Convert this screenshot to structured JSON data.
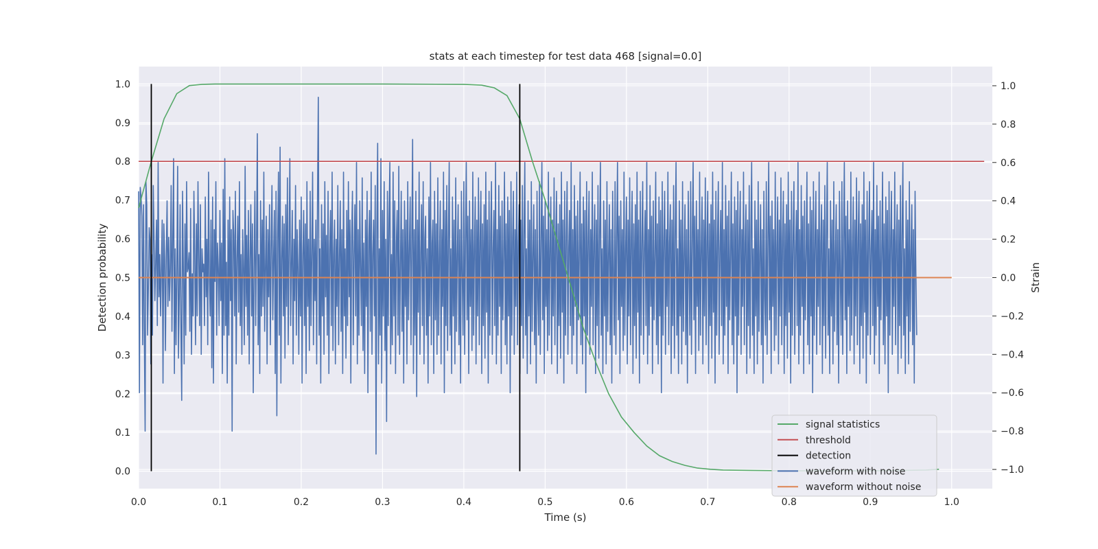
{
  "chart_data": {
    "type": "line",
    "title": "stats at each timestep for test data 468 [signal=0.0]",
    "xlabel": "Time (s)",
    "ylabel": "Detection probability",
    "y2label": "Strain",
    "xlim": [
      0.0,
      1.05
    ],
    "ylim": [
      -0.045,
      1.045
    ],
    "y2lim": [
      -1.1,
      1.1
    ],
    "x_ticks": [
      "0.0",
      "0.1",
      "0.2",
      "0.3",
      "0.4",
      "0.5",
      "0.6",
      "0.7",
      "0.8",
      "0.9",
      "1.0"
    ],
    "y_ticks": [
      "0.0",
      "0.1",
      "0.2",
      "0.3",
      "0.4",
      "0.5",
      "0.6",
      "0.7",
      "0.8",
      "0.9",
      "1.0"
    ],
    "y2_ticks": [
      "−1.0",
      "−0.8",
      "−0.6",
      "−0.4",
      "−0.2",
      "0.0",
      "0.2",
      "0.4",
      "0.6",
      "0.8",
      "1.0"
    ],
    "grid": true,
    "legend_position": "lower right",
    "background": "#eaeaf2",
    "series": [
      {
        "name": "signal statistics",
        "axis": "left",
        "color": "#55a868",
        "x": [
          0.0,
          0.0156,
          0.0313,
          0.0469,
          0.0625,
          0.0781,
          0.0938,
          0.125,
          0.2,
          0.3,
          0.4,
          0.4219,
          0.4375,
          0.4531,
          0.4688,
          0.4844,
          0.5,
          0.5156,
          0.5313,
          0.5469,
          0.5625,
          0.5781,
          0.5938,
          0.6094,
          0.625,
          0.6406,
          0.6563,
          0.6719,
          0.6875,
          0.7031,
          0.7188,
          0.75,
          0.8,
          0.9,
          0.9688,
          0.9844
        ],
        "y": [
          0.68,
          0.8,
          0.91,
          0.975,
          0.996,
          0.999,
          1.0,
          1.0,
          1.0,
          1.0,
          0.999,
          0.997,
          0.99,
          0.97,
          0.91,
          0.8,
          0.7,
          0.59,
          0.48,
          0.37,
          0.28,
          0.2,
          0.14,
          0.1,
          0.065,
          0.04,
          0.025,
          0.015,
          0.008,
          0.005,
          0.003,
          0.002,
          0.001,
          0.001,
          0.003,
          0.005
        ]
      },
      {
        "name": "threshold",
        "axis": "left",
        "color": "#c44e52",
        "x": [
          0.0,
          1.04
        ],
        "y": [
          0.8,
          0.8
        ]
      },
      {
        "name": "detection",
        "axis": "left",
        "color": "#000000",
        "segments": [
          {
            "x": 0.0156,
            "y0": 0.0,
            "y1": 1.0
          },
          {
            "x": 0.4688,
            "y0": 0.0,
            "y1": 1.0
          }
        ]
      },
      {
        "name": "waveform with noise",
        "axis": "right",
        "color": "#4c72b0",
        "x_start": 0.0,
        "x_step": 0.001,
        "y": [
          0.45,
          -0.6,
          0.47,
          0.42,
          0.32,
          -0.35,
          0.38,
          -0.28,
          -0.8,
          0.5,
          0.38,
          -0.3,
          -0.05,
          0.26,
          0.2,
          -0.45,
          0.12,
          -0.3,
          0.48,
          0.2,
          -0.12,
          0.08,
          0.3,
          -0.25,
          0.6,
          -0.1,
          0.12,
          -0.2,
          0.05,
          0.3,
          -0.55,
          0.28,
          0.1,
          -0.38,
          0.12,
          0.4,
          -0.15,
          0.21,
          -0.12,
          0.05,
          0.48,
          -0.28,
          0.2,
          0.62,
          -0.5,
          0.15,
          -0.35,
          0.02,
          0.58,
          -0.42,
          -0.1,
          0.38,
          -0.25,
          -0.64,
          0.45,
          0.05,
          -0.45,
          0.28,
          -0.3,
          0.5,
          0.03,
          0.05,
          0.13,
          -0.28,
          0.36,
          -0.4,
          0.02,
          -0.2,
          0.45,
          0.12,
          -0.35,
          0.28,
          -0.2,
          0.5,
          0.1,
          -0.25,
          0.38,
          -0.4,
          0.15,
          0.03,
          0.07,
          -0.25,
          0.42,
          -0.1,
          0.2,
          -0.35,
          0.55,
          0.0,
          -0.2,
          0.3,
          -0.47,
          0.42,
          -0.55,
          0.25,
          -0.02,
          0.5,
          -0.3,
          0.18,
          0.05,
          -0.25,
          0.35,
          -0.12,
          0.18,
          -0.5,
          0.46,
          -0.3,
          0.62,
          -0.25,
          0.08,
          -0.55,
          0.3,
          -0.3,
          0.42,
          -0.12,
          0.25,
          -0.8,
          0.35,
          0.22,
          -0.2,
          0.45,
          -0.45,
          0.1,
          0.32,
          -0.18,
          0.5,
          -0.25,
          0.12,
          -0.4,
          0.25,
          0.05,
          -0.35,
          0.58,
          -0.15,
          0.22,
          -0.3,
          0.35,
          -0.45,
          0.1,
          0.38,
          -0.2,
          0.28,
          -0.6,
          0.05,
          0.45,
          -0.25,
          0.15,
          0.75,
          -0.35,
          0.12,
          -0.5,
          0.4,
          -0.2,
          0.3,
          -0.15,
          0.55,
          -0.28,
          0.05,
          0.32,
          -0.45,
          0.25,
          -0.1,
          0.38,
          -0.35,
          0.15,
          0.48,
          -0.22,
          0.1,
          0.35,
          -0.5,
          0.45,
          -0.72,
          0.2,
          0.55,
          -0.3,
          0.68,
          -0.55,
          0.1,
          0.32,
          -0.2,
          0.28,
          -0.42,
          0.38,
          -0.15,
          0.52,
          -0.35,
          0.15,
          0.62,
          -0.25,
          0.08,
          0.35,
          -0.45,
          0.2,
          -0.12,
          0.48,
          -0.3,
          0.25,
          0.05,
          -0.4,
          0.3,
          -0.2,
          0.42,
          -0.55,
          0.12,
          0.35,
          -0.25,
          0.28,
          -0.5,
          0.5,
          -0.15,
          0.2,
          -0.38,
          0.45,
          -0.25,
          0.12,
          0.55,
          -0.35,
          0.2,
          -0.12,
          0.3,
          -0.45,
          0.4,
          0.94,
          -0.3,
          0.15,
          -0.55,
          0.38,
          -0.2,
          0.28,
          -0.4,
          0.5,
          -0.1,
          0.22,
          -0.3,
          0.45,
          -0.5,
          0.15,
          0.35,
          -0.25,
          0.55,
          -0.38,
          0.12,
          0.3,
          -0.45,
          0.2,
          -0.15,
          0.48,
          -0.35,
          0.1,
          0.4,
          -0.28,
          0.25,
          -0.5,
          0.55,
          -0.2,
          0.15,
          -0.42,
          0.35,
          -0.25,
          0.5,
          -0.1,
          0.3,
          -0.55,
          0.2,
          0.45,
          -0.35,
          0.12,
          0.38,
          -0.2,
          0.6,
          -0.45,
          0.25,
          -0.3,
          0.4,
          0.05,
          -0.25,
          0.52,
          -0.38,
          0.18,
          -0.5,
          0.3,
          -0.15,
          0.45,
          -0.6,
          0.2,
          0.35,
          -0.28,
          0.55,
          -0.4,
          0.12,
          0.3,
          -0.2,
          0.48,
          -0.92,
          0.25,
          0.7,
          -0.45,
          0.15,
          -0.3,
          0.62,
          -0.55,
          0.35,
          -0.2,
          0.5,
          -0.38,
          0.2,
          -0.75,
          0.45,
          -0.25,
          0.3,
          0.6,
          -0.45,
          0.12,
          -0.35,
          0.55,
          -0.2,
          0.4,
          -0.5,
          0.18,
          0.35,
          -0.3,
          0.58,
          -0.4,
          0.05,
          0.45,
          -0.28,
          0.25,
          -0.55,
          0.4,
          -0.15,
          0.3,
          -0.45,
          0.5,
          -0.22,
          0.15,
          0.42,
          -0.35,
          0.2,
          0.72,
          -0.5,
          0.25,
          -0.3,
          0.45,
          -0.62,
          0.3,
          -0.18,
          0.55,
          -0.4,
          0.12,
          0.38,
          -0.25,
          0.5,
          -0.45,
          0.2,
          0.32,
          -0.3,
          0.15,
          -0.55,
          0.42,
          -0.2,
          0.6,
          -0.35,
          0.18,
          0.3,
          -0.5,
          0.45,
          -0.22,
          0.28,
          -0.4,
          0.52,
          -0.3,
          0.1,
          0.4,
          -0.45,
          0.25,
          -0.15,
          0.55,
          -0.6,
          0.35,
          -0.25,
          0.48,
          -0.38,
          0.2,
          0.6,
          -0.3,
          0.15,
          -0.5,
          0.42,
          -0.2,
          0.3,
          -0.45,
          0.52,
          -0.28,
          0.12,
          0.38,
          -0.35,
          0.25,
          -0.55,
          0.45,
          0.02,
          -0.3,
          0.5,
          -0.4,
          0.2,
          0.6,
          -0.22,
          0.32,
          -0.5,
          0.4,
          -0.15,
          0.25,
          -0.38,
          0.55,
          -0.3,
          0.15,
          0.42,
          -0.45,
          0.3,
          -0.2,
          0.52,
          -0.35,
          0.2,
          0.45,
          -0.5,
          0.28,
          -0.25,
          0.38,
          -0.42,
          0.55,
          -0.18,
          0.3,
          -0.55,
          0.45,
          -0.3,
          0.2,
          0.5,
          -0.4,
          0.15,
          0.35,
          -0.25,
          0.6,
          -0.45,
          0.25,
          -0.3,
          0.48,
          -0.15,
          0.32,
          -0.5,
          0.4,
          -0.22,
          0.12,
          0.55,
          -0.35,
          0.28,
          -0.45,
          0.42,
          -0.2,
          0.35,
          -0.6,
          0.5,
          -0.3,
          0.2,
          0.45,
          -0.4,
          0.25,
          -0.15,
          0.55,
          -0.35,
          0.18,
          0.38,
          -0.5,
          0.3,
          -0.25,
          0.48,
          -0.42,
          0.22,
          0.6,
          -0.3,
          0.15,
          -0.5,
          0.4,
          -0.2,
          0.3,
          -0.45,
          0.5,
          -0.28,
          0.12,
          0.38,
          -0.35,
          0.25,
          -0.55,
          0.45,
          -0.1,
          -0.3,
          0.5,
          -0.4,
          0.2,
          0.6,
          -0.22,
          0.32,
          -0.5,
          0.4,
          -0.15,
          0.25,
          -0.38,
          0.55,
          -0.3,
          0.15,
          0.42,
          -0.45,
          0.3,
          -0.2,
          0.52,
          -0.35,
          0.2,
          0.45,
          -0.5,
          0.28,
          -0.25,
          0.38,
          -0.42,
          0.55,
          -0.18,
          0.3,
          -0.55,
          0.45,
          -0.3,
          0.2,
          0.5,
          -0.4,
          0.15,
          0.35,
          -0.25,
          0.6,
          -0.45,
          0.25,
          -0.3,
          0.48,
          -0.15,
          0.32,
          -0.5,
          0.4,
          -0.22,
          0.12,
          0.55,
          -0.35,
          0.28,
          -0.45,
          0.42,
          -0.2,
          0.35,
          -0.6,
          0.5,
          -0.3,
          0.2,
          0.45,
          -0.4,
          0.25,
          -0.15,
          0.55,
          -0.35,
          0.18,
          0.38,
          -0.5,
          0.3,
          -0.25,
          0.48,
          -0.42,
          0.22,
          0.6,
          -0.3,
          0.15,
          -0.5,
          0.4,
          -0.2,
          0.3,
          -0.45,
          0.5,
          -0.28,
          0.12,
          0.38,
          -0.35,
          0.25,
          -0.55,
          0.45,
          0.02,
          -0.3,
          0.5,
          -0.4,
          0.2,
          0.6,
          -0.22,
          0.32,
          -0.5,
          0.4,
          -0.15,
          0.25,
          -0.38,
          0.55,
          -0.3,
          0.15,
          0.42,
          -0.45,
          0.3,
          -0.2,
          0.52,
          -0.35,
          0.2,
          0.45,
          -0.5,
          0.28,
          -0.25,
          0.38,
          -0.42,
          0.55,
          -0.18,
          0.3,
          -0.55,
          0.45,
          -0.3,
          0.2,
          0.5,
          -0.4,
          0.15,
          0.35,
          -0.25,
          0.6,
          -0.45,
          0.25,
          -0.3,
          0.48,
          -0.15,
          0.32,
          -0.5,
          0.4,
          -0.22,
          0.12,
          0.55,
          -0.35,
          0.28,
          -0.45,
          0.42,
          -0.2,
          0.35,
          -0.6,
          0.5,
          -0.3,
          0.2,
          0.45,
          -0.4,
          0.25,
          -0.15,
          0.55,
          -0.35,
          0.18,
          0.38,
          -0.5,
          0.3,
          -0.25,
          0.48,
          -0.42,
          0.22,
          0.6,
          -0.3,
          0.15,
          -0.5,
          0.4,
          -0.2,
          0.3,
          -0.45,
          0.5,
          -0.28,
          0.12,
          0.38,
          -0.35,
          0.25,
          -0.55,
          0.45,
          0.02,
          -0.3,
          0.5,
          -0.4,
          0.2,
          0.6,
          -0.22,
          0.32,
          -0.5,
          0.4,
          -0.15,
          0.25,
          -0.38,
          0.55,
          -0.3,
          0.15,
          0.42,
          -0.45,
          0.3,
          -0.2,
          0.52,
          -0.35,
          0.2,
          0.45,
          -0.5,
          0.28,
          -0.25,
          0.38,
          -0.42,
          0.55,
          -0.18,
          0.3,
          -0.55,
          0.45,
          -0.3,
          0.2,
          0.5,
          -0.4,
          0.15,
          0.35,
          -0.25,
          0.6,
          -0.45,
          0.25,
          -0.3,
          0.48,
          -0.15,
          0.32,
          -0.5,
          0.4,
          -0.22,
          0.12,
          0.55,
          -0.35,
          0.28,
          -0.45,
          0.42,
          -0.2,
          0.35,
          -0.6,
          0.5,
          -0.3,
          0.2,
          0.45,
          -0.4,
          0.25,
          -0.15,
          0.55,
          -0.35,
          0.18,
          0.38,
          -0.5,
          0.3,
          -0.25,
          0.48,
          -0.42,
          0.22,
          0.6,
          -0.3,
          0.15,
          -0.5,
          0.4,
          -0.2,
          0.3,
          -0.45,
          0.5,
          -0.28,
          0.12,
          0.38,
          -0.35,
          0.25,
          -0.55,
          0.45,
          -0.1,
          -0.3,
          0.5,
          -0.4,
          0.2,
          0.6,
          -0.22,
          0.32,
          -0.5,
          0.4,
          -0.15,
          0.25,
          -0.38,
          0.55,
          -0.3,
          0.15,
          0.42,
          -0.45,
          0.3,
          -0.2,
          0.52,
          -0.35,
          0.2,
          0.45,
          -0.5,
          0.28,
          -0.25,
          0.38,
          -0.42,
          0.55,
          -0.18,
          0.3,
          -0.55,
          0.45,
          -0.3,
          0.2,
          0.5,
          -0.4,
          0.15,
          0.35,
          -0.25,
          0.6,
          -0.45,
          0.25,
          -0.3,
          0.48,
          -0.15,
          0.32,
          -0.5,
          0.4,
          -0.22,
          0.12,
          0.55,
          -0.35,
          0.28,
          -0.45,
          0.42,
          -0.2,
          0.35,
          -0.6,
          0.5,
          -0.3,
          0.2,
          0.45,
          -0.4,
          0.25,
          -0.15,
          0.55,
          -0.35,
          0.18,
          0.38,
          -0.5,
          0.3,
          -0.25,
          0.48,
          -0.42,
          0.22,
          0.6,
          -0.3,
          0.15,
          -0.5,
          0.4,
          -0.2,
          0.3,
          -0.45,
          0.5,
          -0.28,
          0.12,
          0.38,
          -0.35,
          0.25,
          -0.55,
          0.45,
          0.02,
          -0.3,
          0.5,
          -0.4,
          0.2,
          0.6,
          -0.22,
          0.32,
          -0.5,
          0.4,
          -0.15,
          0.25,
          -0.38,
          0.55,
          -0.3,
          0.15,
          0.42,
          -0.45,
          0.3,
          -0.2,
          0.52,
          -0.35,
          0.2,
          0.45,
          -0.5,
          0.28,
          -0.25,
          0.38,
          -0.42,
          0.55,
          -0.18,
          0.3,
          -0.55,
          0.45,
          -0.3,
          0.2,
          0.5,
          -0.4,
          0.15,
          0.35,
          -0.25,
          0.6,
          -0.45,
          0.25,
          -0.3,
          0.48,
          -0.15,
          0.32,
          -0.5,
          0.4,
          -0.22,
          0.12,
          0.55,
          -0.35,
          0.28,
          -0.45,
          0.42,
          -0.2,
          0.35,
          -0.6,
          0.5,
          -0.3,
          0.2,
          0.45,
          -0.4,
          0.25,
          -0.15,
          0.55,
          -0.35,
          0.18,
          0.38,
          -0.5,
          0.3,
          -0.25,
          0.48,
          -0.42,
          0.22,
          0.6,
          -0.3,
          0.15,
          -0.5,
          0.4,
          -0.2,
          0.3,
          -0.45,
          0.5,
          -0.28,
          0.12,
          0.38,
          -0.35,
          0.25,
          -0.55,
          0.45,
          0.02,
          -0.3
        ]
      },
      {
        "name": "waveform without noise",
        "axis": "right",
        "color": "#dd8452",
        "x": [
          0.0,
          1.0
        ],
        "y": [
          0.0,
          0.0
        ]
      }
    ]
  }
}
